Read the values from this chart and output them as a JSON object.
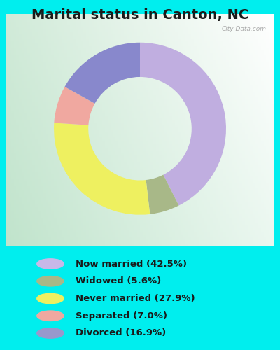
{
  "title": "Marital status in Canton, NC",
  "title_fontsize": 14,
  "title_color": "#1a1a1a",
  "cyan_bg": "#00EEEE",
  "chart_panel_color": "#d0ead8",
  "slices": [
    {
      "label": "Now married (42.5%)",
      "value": 42.5,
      "color": "#c0aee0"
    },
    {
      "label": "Widowed (5.6%)",
      "value": 5.6,
      "color": "#a8b888"
    },
    {
      "label": "Never married (27.9%)",
      "value": 27.9,
      "color": "#eef060"
    },
    {
      "label": "Separated (7.0%)",
      "value": 7.0,
      "color": "#f0a8a0"
    },
    {
      "label": "Divorced (16.9%)",
      "value": 16.9,
      "color": "#8888cc"
    }
  ],
  "legend_labels": [
    "Now married (42.5%)",
    "Widowed (5.6%)",
    "Never married (27.9%)",
    "Separated (7.0%)",
    "Divorced (16.9%)"
  ],
  "legend_colors": [
    "#c8b8e8",
    "#a8b888",
    "#eef060",
    "#f0a8a0",
    "#9898cc"
  ],
  "donut_width": 0.4,
  "startangle": 90,
  "figsize": [
    4.0,
    5.0
  ],
  "dpi": 100
}
